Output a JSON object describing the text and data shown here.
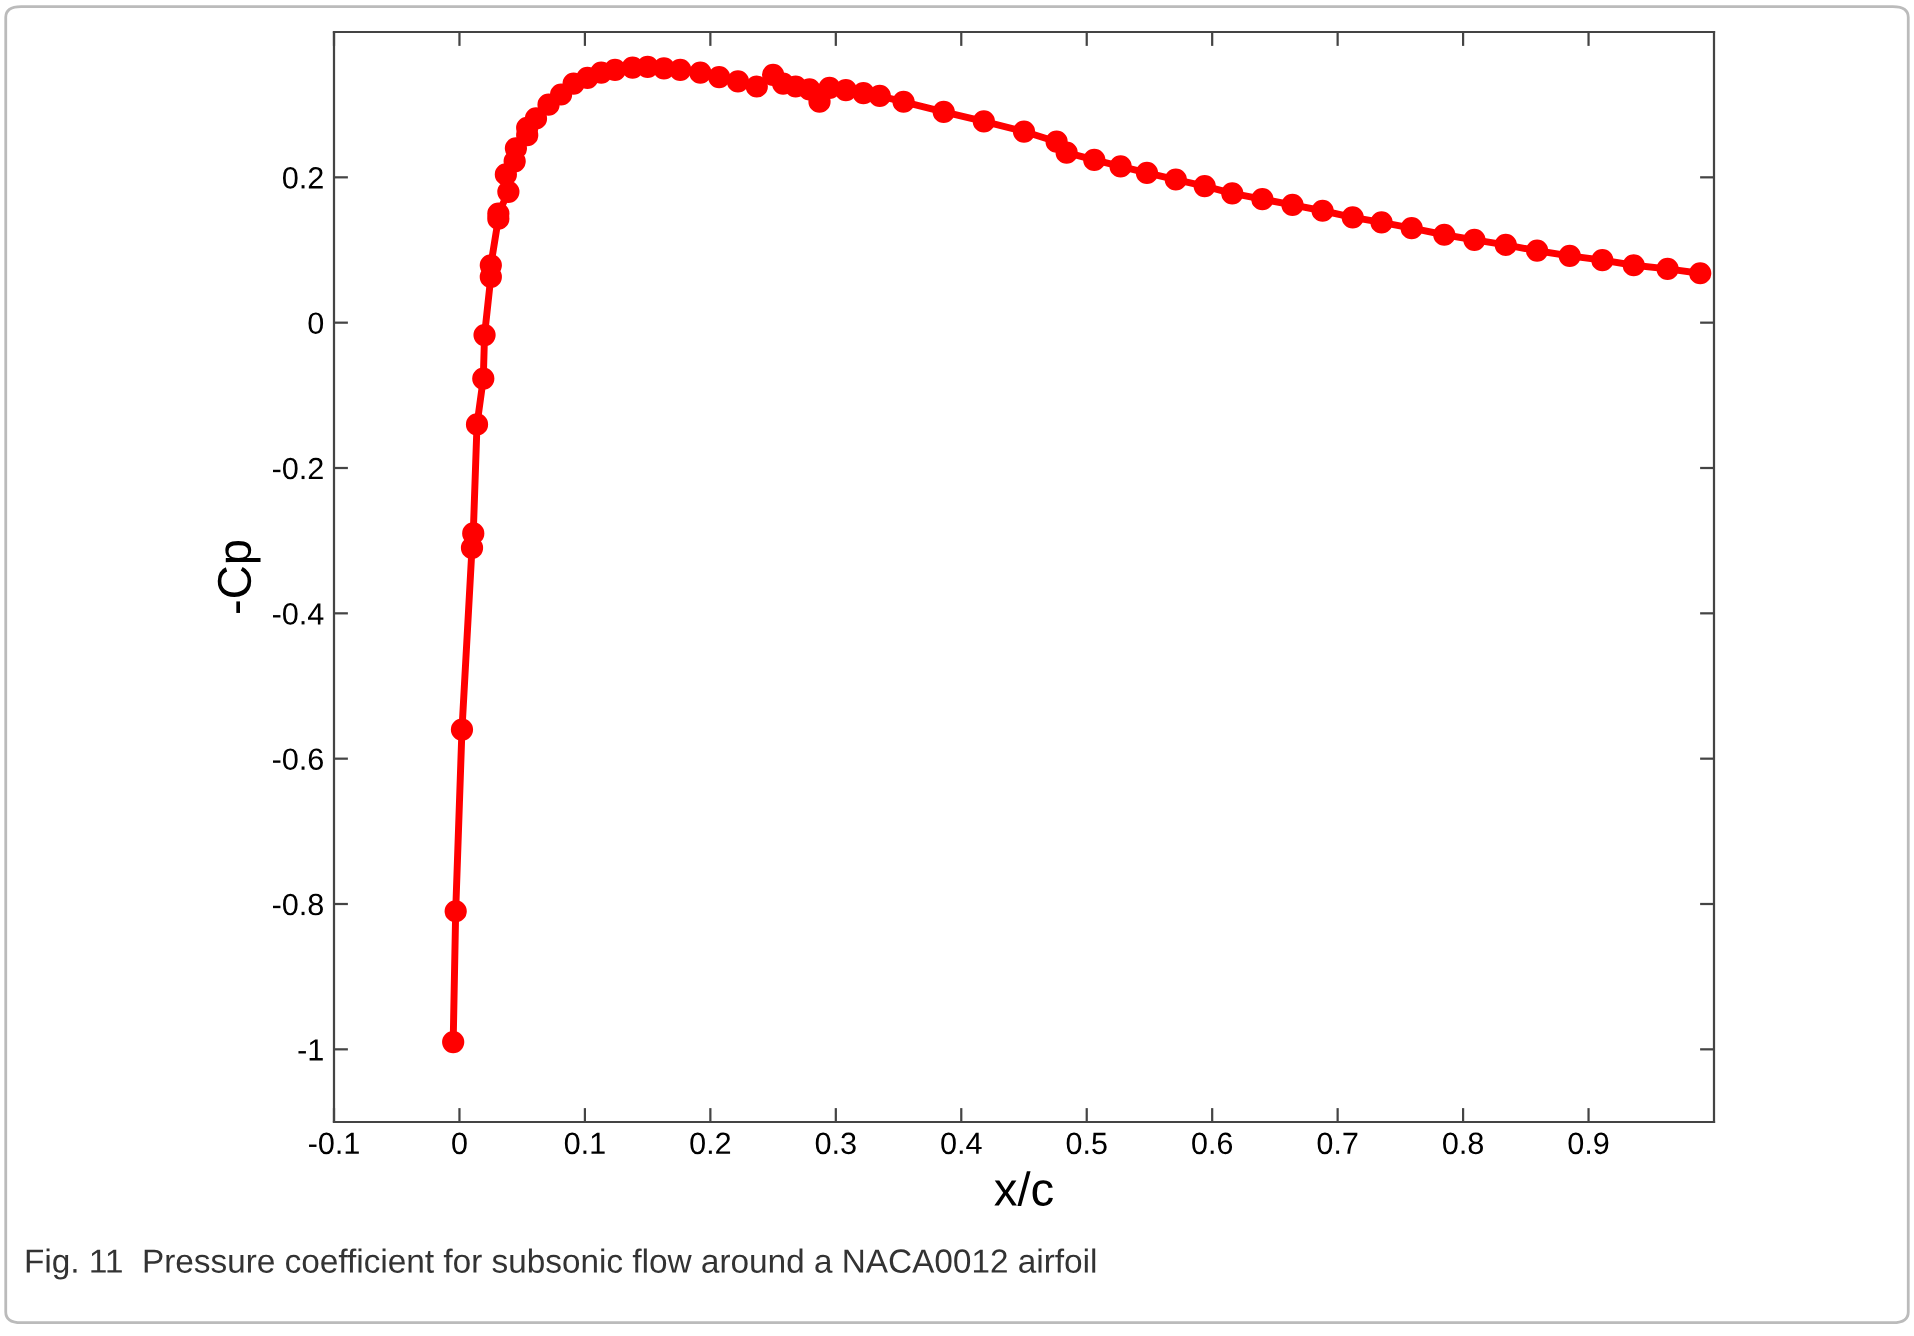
{
  "chart_data": {
    "type": "line",
    "xlabel": "x/c",
    "ylabel": "-Cp",
    "annotations": [
      "Fig. 11  Pressure coefficient for subsonic flow around a NACA0012 airfoil"
    ],
    "xlim": [
      -0.1,
      1.0
    ],
    "ylim": [
      -1.1,
      0.4
    ],
    "xticks": [
      -0.1,
      0,
      0.1,
      0.2,
      0.3,
      0.4,
      0.5,
      0.6,
      0.7,
      0.8,
      0.9
    ],
    "yticks": [
      -1,
      -0.8,
      -0.6,
      -0.4,
      -0.2,
      0,
      0.2
    ],
    "grid": false,
    "marker": "circle",
    "line_style": "solid",
    "series": [
      {
        "color": "#ff0000",
        "x": [
          -0.005,
          -0.003,
          0.002,
          0.01,
          0.011,
          0.014,
          0.019,
          0.02,
          0.025,
          0.025,
          0.031,
          0.031,
          0.039,
          0.037,
          0.044,
          0.045,
          0.054,
          0.054,
          0.061,
          0.071,
          0.081,
          0.091,
          0.102,
          0.113,
          0.124,
          0.138,
          0.15,
          0.163,
          0.176,
          0.192,
          0.207,
          0.222,
          0.237,
          0.25,
          0.258,
          0.268,
          0.279,
          0.287,
          0.295,
          0.308,
          0.322,
          0.335,
          0.354,
          0.386,
          0.418,
          0.45,
          0.476,
          0.484,
          0.506,
          0.527,
          0.548,
          0.571,
          0.594,
          0.616,
          0.64,
          0.664,
          0.688,
          0.712,
          0.735,
          0.759,
          0.785,
          0.809,
          0.834,
          0.859,
          0.885,
          0.911,
          0.936,
          0.963,
          0.989
        ],
        "values": [
          -0.99,
          -0.81,
          -0.56,
          -0.31,
          -0.29,
          -0.14,
          -0.077,
          -0.017,
          0.063,
          0.079,
          0.143,
          0.15,
          0.18,
          0.204,
          0.222,
          0.24,
          0.258,
          0.268,
          0.281,
          0.3,
          0.314,
          0.329,
          0.337,
          0.344,
          0.348,
          0.351,
          0.352,
          0.35,
          0.348,
          0.344,
          0.338,
          0.332,
          0.325,
          0.341,
          0.329,
          0.325,
          0.321,
          0.304,
          0.323,
          0.32,
          0.316,
          0.312,
          0.304,
          0.29,
          0.277,
          0.263,
          0.249,
          0.234,
          0.224,
          0.215,
          0.206,
          0.197,
          0.188,
          0.178,
          0.17,
          0.162,
          0.154,
          0.145,
          0.138,
          0.13,
          0.121,
          0.114,
          0.107,
          0.099,
          0.092,
          0.086,
          0.079,
          0.074,
          0.068
        ]
      }
    ]
  }
}
